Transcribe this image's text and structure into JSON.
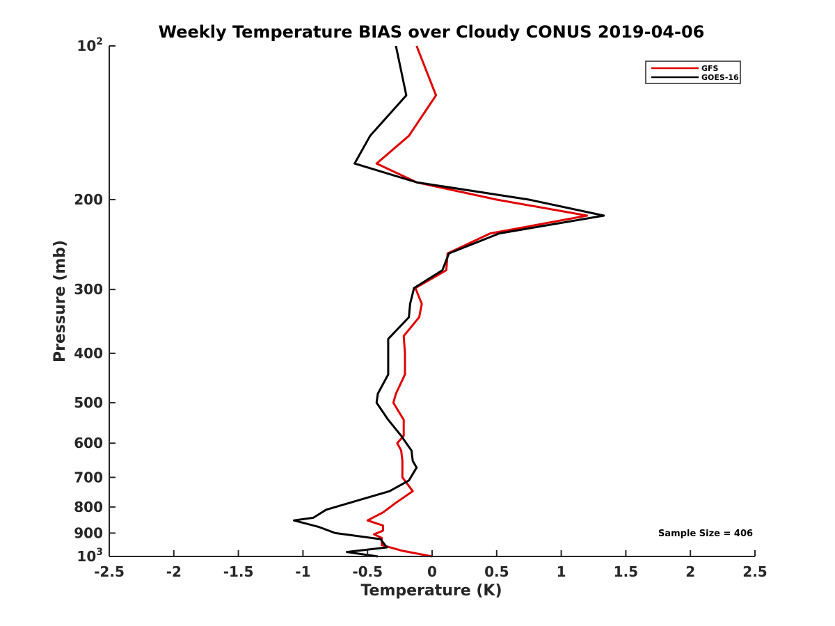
{
  "chart_data": {
    "type": "line",
    "title": "Weekly Temperature BIAS over Cloudy CONUS 2019-04-06",
    "xlabel": "Temperature (K)",
    "ylabel": "Pressure (mb)",
    "xlim": [
      -2.5,
      2.5
    ],
    "ylim": [
      1000,
      100
    ],
    "y_scale": "log",
    "y_reversed": true,
    "x_ticks": [
      "-2.5",
      "-2",
      "-1.5",
      "-1",
      "-0.5",
      "0",
      "0.5",
      "1",
      "1.5",
      "2",
      "2.5"
    ],
    "x_tick_values": [
      -2.5,
      -2,
      -1.5,
      -1,
      -0.5,
      0,
      0.5,
      1,
      1.5,
      2,
      2.5
    ],
    "y_ticks": [
      {
        "value": 100,
        "base": "10",
        "exp": "2"
      },
      {
        "value": 200,
        "label": "200"
      },
      {
        "value": 300,
        "label": "300"
      },
      {
        "value": 400,
        "label": "400"
      },
      {
        "value": 500,
        "label": "500"
      },
      {
        "value": 600,
        "label": "600"
      },
      {
        "value": 700,
        "label": "700"
      },
      {
        "value": 800,
        "label": "800"
      },
      {
        "value": 900,
        "label": "900"
      },
      {
        "value": 1000,
        "base": "10",
        "exp": "3"
      }
    ],
    "grid": false,
    "legend_position": "top-right",
    "annotation": "Sample Size = 406",
    "series": [
      {
        "name": "GFS",
        "color": "#e00000",
        "points": [
          [
            -0.12,
            100
          ],
          [
            0.03,
            125
          ],
          [
            -0.18,
            150
          ],
          [
            -0.43,
            170
          ],
          [
            -0.12,
            185
          ],
          [
            0.5,
            200
          ],
          [
            1.2,
            215
          ],
          [
            0.45,
            233
          ],
          [
            0.12,
            255
          ],
          [
            0.11,
            275
          ],
          [
            -0.13,
            298
          ],
          [
            -0.08,
            320
          ],
          [
            -0.1,
            340
          ],
          [
            -0.22,
            370
          ],
          [
            -0.21,
            400
          ],
          [
            -0.21,
            440
          ],
          [
            -0.28,
            480
          ],
          [
            -0.3,
            500
          ],
          [
            -0.22,
            540
          ],
          [
            -0.22,
            580
          ],
          [
            -0.27,
            600
          ],
          [
            -0.24,
            620
          ],
          [
            -0.23,
            650
          ],
          [
            -0.23,
            700
          ],
          [
            -0.15,
            745
          ],
          [
            -0.28,
            785
          ],
          [
            -0.38,
            820
          ],
          [
            -0.5,
            850
          ],
          [
            -0.38,
            870
          ],
          [
            -0.38,
            890
          ],
          [
            -0.45,
            905
          ],
          [
            -0.39,
            920
          ],
          [
            -0.39,
            950
          ],
          [
            -0.23,
            975
          ],
          [
            0.0,
            1000
          ]
        ]
      },
      {
        "name": "GOES-16",
        "color": "#000000",
        "points": [
          [
            -0.28,
            100
          ],
          [
            -0.2,
            125
          ],
          [
            -0.48,
            150
          ],
          [
            -0.6,
            170
          ],
          [
            -0.12,
            185
          ],
          [
            0.75,
            200
          ],
          [
            1.33,
            215
          ],
          [
            0.52,
            233
          ],
          [
            0.13,
            255
          ],
          [
            0.08,
            275
          ],
          [
            -0.14,
            298
          ],
          [
            -0.17,
            320
          ],
          [
            -0.18,
            340
          ],
          [
            -0.34,
            375
          ],
          [
            -0.34,
            400
          ],
          [
            -0.34,
            440
          ],
          [
            -0.42,
            480
          ],
          [
            -0.43,
            500
          ],
          [
            -0.34,
            540
          ],
          [
            -0.24,
            580
          ],
          [
            -0.2,
            600
          ],
          [
            -0.16,
            620
          ],
          [
            -0.15,
            650
          ],
          [
            -0.12,
            670
          ],
          [
            -0.18,
            710
          ],
          [
            -0.33,
            745
          ],
          [
            -0.82,
            810
          ],
          [
            -0.92,
            840
          ],
          [
            -1.07,
            850
          ],
          [
            -0.88,
            875
          ],
          [
            -0.75,
            900
          ],
          [
            -0.4,
            925
          ],
          [
            -0.35,
            960
          ],
          [
            -0.66,
            980
          ],
          [
            -0.42,
            1000
          ]
        ]
      }
    ]
  }
}
